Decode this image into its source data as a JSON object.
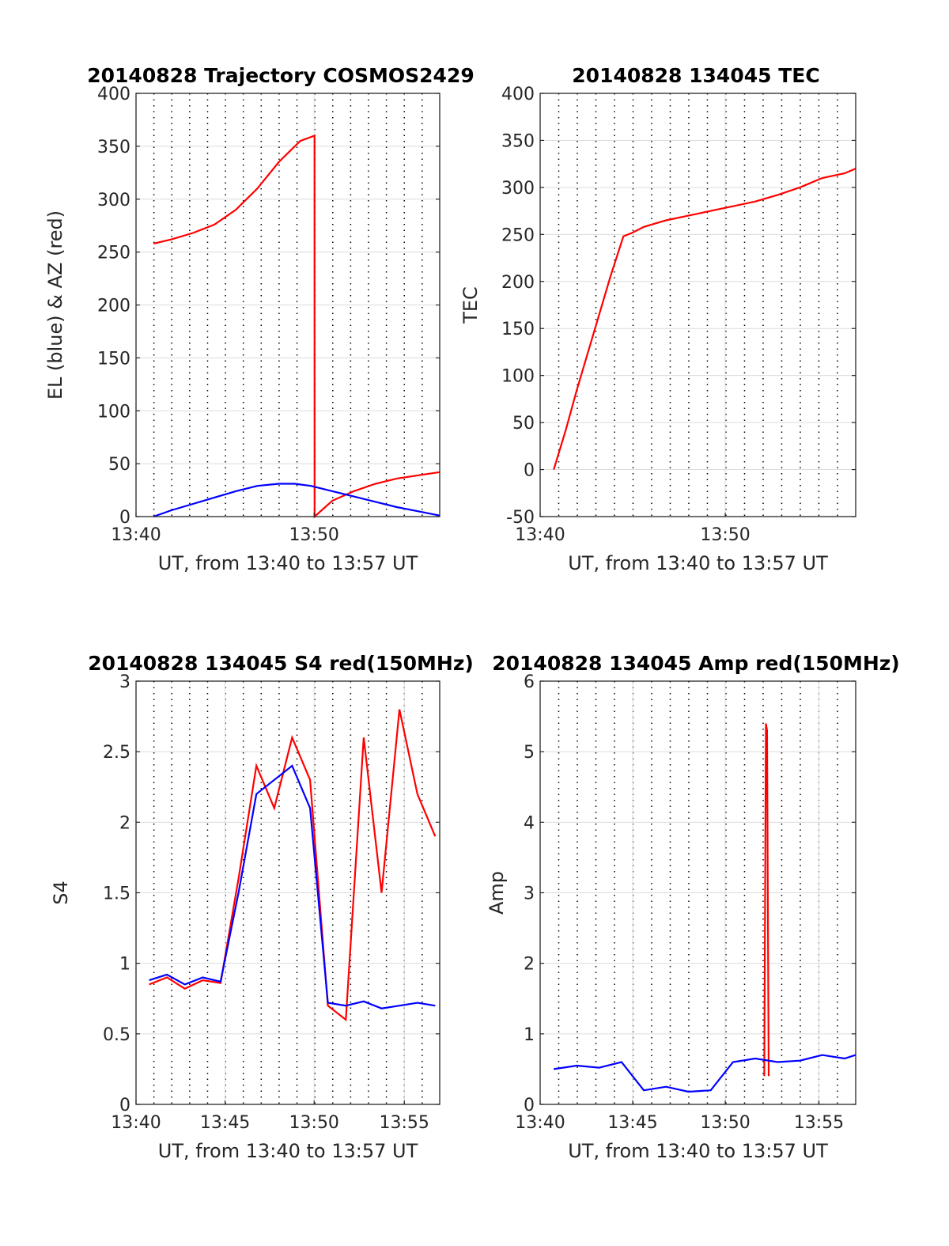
{
  "chart_data": [
    {
      "type": "line",
      "title": "20140828 Trajectory COSMOS2429",
      "xlabel": "UT, from 13:40 to 13:57 UT",
      "ylabel": "EL (blue) & AZ (red)",
      "xlim": [
        13.667,
        13.95
      ],
      "ylim": [
        0,
        400
      ],
      "xticks": [
        {
          "value": 13.667,
          "label": "13:40"
        },
        {
          "value": 13.833,
          "label": "13:50"
        }
      ],
      "yticks": [
        0,
        50,
        100,
        150,
        200,
        250,
        300,
        350,
        400
      ],
      "grid": true,
      "series": [
        {
          "color": "#ff0000",
          "x": [
            13.6833,
            13.7,
            13.72,
            13.74,
            13.76,
            13.78,
            13.8,
            13.82,
            13.8333,
            13.8334,
            13.85,
            13.87,
            13.89,
            13.91,
            13.93,
            13.95
          ],
          "values": [
            258,
            262,
            268,
            276,
            290,
            310,
            335,
            355,
            360,
            0,
            15,
            24,
            31,
            36,
            39,
            42
          ]
        },
        {
          "color": "#0000ff",
          "x": [
            13.6833,
            13.7,
            13.72,
            13.74,
            13.76,
            13.78,
            13.8,
            13.815,
            13.83,
            13.85,
            13.87,
            13.89,
            13.91,
            13.93,
            13.95
          ],
          "values": [
            0,
            6,
            12,
            18,
            24,
            29,
            31,
            31,
            29,
            24,
            19,
            14,
            9,
            5,
            1
          ]
        }
      ]
    },
    {
      "type": "line",
      "title": "20140828 134045 TEC",
      "xlabel": "UT, from 13:40 to 13:57 UT",
      "ylabel": "TEC",
      "xlim": [
        13.667,
        13.95
      ],
      "ylim": [
        -50,
        400
      ],
      "xticks": [
        {
          "value": 13.667,
          "label": "13:40"
        },
        {
          "value": 13.833,
          "label": "13:50"
        }
      ],
      "yticks": [
        -50,
        0,
        50,
        100,
        150,
        200,
        250,
        300,
        350,
        400
      ],
      "grid": true,
      "series": [
        {
          "color": "#ff0000",
          "x": [
            13.6792,
            13.69,
            13.7,
            13.71,
            13.72,
            13.73,
            13.7417,
            13.75,
            13.76,
            13.78,
            13.8,
            13.82,
            13.84,
            13.86,
            13.88,
            13.9,
            13.92,
            13.94,
            13.95
          ],
          "values": [
            0,
            42,
            85,
            125,
            165,
            205,
            248,
            252,
            258,
            265,
            270,
            275,
            280,
            285,
            292,
            300,
            310,
            315,
            320
          ]
        }
      ]
    },
    {
      "type": "line",
      "title": "20140828 134045 S4 red(150MHz)",
      "xlabel": "UT, from 13:40 to 13:57 UT",
      "ylabel": "S4",
      "xlim": [
        13.667,
        13.95
      ],
      "ylim": [
        0,
        3
      ],
      "xticks": [
        {
          "value": 13.667,
          "label": "13:40"
        },
        {
          "value": 13.75,
          "label": "13:45"
        },
        {
          "value": 13.833,
          "label": "13:50"
        },
        {
          "value": 13.917,
          "label": "13:55"
        }
      ],
      "yticks": [
        0,
        0.5,
        1,
        1.5,
        2,
        2.5,
        3
      ],
      "grid": true,
      "series": [
        {
          "color": "#ff0000",
          "x": [
            13.6792,
            13.6958,
            13.7125,
            13.7292,
            13.7458,
            13.7625,
            13.7792,
            13.7958,
            13.8125,
            13.8292,
            13.8458,
            13.8625,
            13.8792,
            13.8958,
            13.9125,
            13.9292,
            13.9458
          ],
          "values": [
            0.85,
            0.9,
            0.82,
            0.88,
            0.86,
            1.6,
            2.4,
            2.1,
            2.6,
            2.3,
            0.7,
            0.6,
            2.6,
            1.5,
            2.8,
            2.2,
            1.9
          ]
        },
        {
          "color": "#0000ff",
          "x": [
            13.6792,
            13.6958,
            13.7125,
            13.7292,
            13.7458,
            13.7625,
            13.7792,
            13.7958,
            13.8125,
            13.8292,
            13.8458,
            13.8625,
            13.8792,
            13.8958,
            13.9125,
            13.9292,
            13.9458
          ],
          "values": [
            0.88,
            0.92,
            0.85,
            0.9,
            0.87,
            1.5,
            2.2,
            2.3,
            2.4,
            2.1,
            0.72,
            0.7,
            0.73,
            0.68,
            0.7,
            0.72,
            0.7
          ]
        }
      ]
    },
    {
      "type": "line",
      "title": "20140828 134045 Amp red(150MHz)",
      "xlabel": "UT, from 13:40 to 13:57 UT",
      "ylabel": "Amp",
      "xlim": [
        13.667,
        13.95
      ],
      "ylim": [
        0,
        6
      ],
      "xticks": [
        {
          "value": 13.667,
          "label": "13:40"
        },
        {
          "value": 13.75,
          "label": "13:45"
        },
        {
          "value": 13.833,
          "label": "13:50"
        },
        {
          "value": 13.917,
          "label": "13:55"
        }
      ],
      "yticks": [
        0,
        1,
        2,
        3,
        4,
        5,
        6
      ],
      "grid": true,
      "series": [
        {
          "color": "#ff0000",
          "x": [
            13.868,
            13.8695,
            13.8705,
            13.872
          ],
          "values": [
            0.4,
            5.4,
            5.3,
            0.4
          ]
        },
        {
          "color": "#0000ff",
          "x": [
            13.6792,
            13.7,
            13.72,
            13.74,
            13.76,
            13.78,
            13.8,
            13.82,
            13.84,
            13.86,
            13.88,
            13.9,
            13.92,
            13.94,
            13.95
          ],
          "values": [
            0.5,
            0.55,
            0.52,
            0.6,
            0.2,
            0.25,
            0.18,
            0.2,
            0.6,
            0.65,
            0.6,
            0.62,
            0.7,
            0.65,
            0.7
          ]
        }
      ]
    }
  ]
}
